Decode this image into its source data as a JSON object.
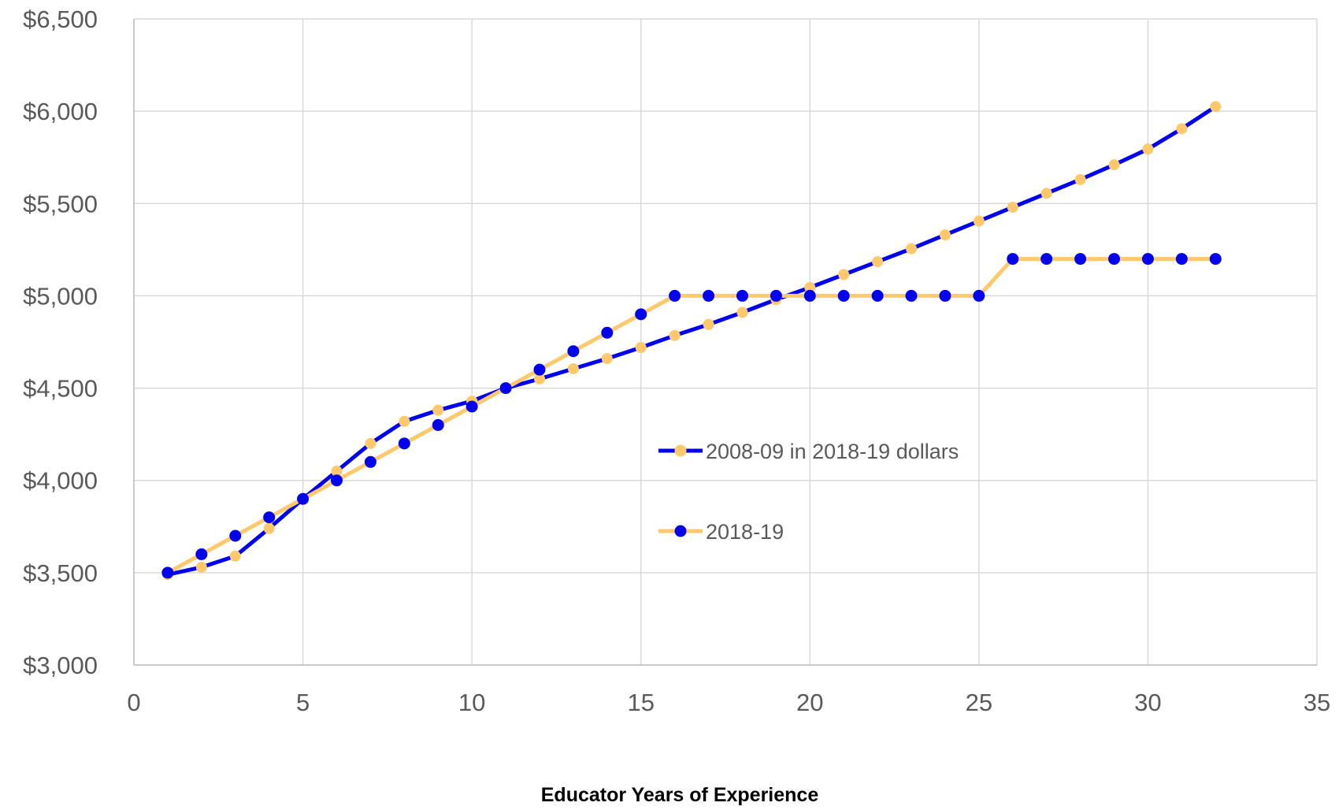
{
  "chart_data": {
    "type": "line",
    "title": "",
    "xlabel": "Educator Years of Experience",
    "ylabel": "",
    "xlim": [
      0,
      35
    ],
    "ylim": [
      3000,
      6500
    ],
    "x_ticks": [
      0,
      5,
      10,
      15,
      20,
      25,
      30,
      35
    ],
    "y_ticks": [
      3000,
      3500,
      4000,
      4500,
      5000,
      5500,
      6000,
      6500
    ],
    "x_tick_labels": [
      "0",
      "5",
      "10",
      "15",
      "20",
      "25",
      "30",
      "35"
    ],
    "y_tick_labels": [
      "$3,000",
      "$3,500",
      "$4,000",
      "$4,500",
      "$5,000",
      "$5,500",
      "$6,000",
      "$6,500"
    ],
    "grid": true,
    "legend_position": "center-right",
    "x": [
      1,
      2,
      3,
      4,
      5,
      6,
      7,
      8,
      9,
      10,
      11,
      12,
      13,
      14,
      15,
      16,
      17,
      18,
      19,
      20,
      21,
      22,
      23,
      24,
      25,
      26,
      27,
      28,
      29,
      30,
      31,
      32
    ],
    "series": [
      {
        "name": "2008-09 in 2018-19 dollars",
        "line_color": "#0000EE",
        "marker_color": "#FFC96B",
        "values": [
          3490,
          3530,
          3590,
          3740,
          3900,
          4050,
          4200,
          4320,
          4380,
          4430,
          4500,
          4550,
          4605,
          4660,
          4720,
          4785,
          4845,
          4910,
          4980,
          5045,
          5115,
          5185,
          5255,
          5330,
          5405,
          5480,
          5555,
          5630,
          5710,
          5795,
          5905,
          6025
        ]
      },
      {
        "name": "2018-19",
        "line_color": "#FFC96B",
        "marker_color": "#0000EE",
        "values": [
          3500,
          3600,
          3700,
          3800,
          3900,
          4000,
          4100,
          4200,
          4300,
          4400,
          4500,
          4600,
          4700,
          4800,
          4900,
          5000,
          5000,
          5000,
          5000,
          5000,
          5000,
          5000,
          5000,
          5000,
          5000,
          5200,
          5200,
          5200,
          5200,
          5200,
          5200,
          5200
        ]
      }
    ]
  }
}
